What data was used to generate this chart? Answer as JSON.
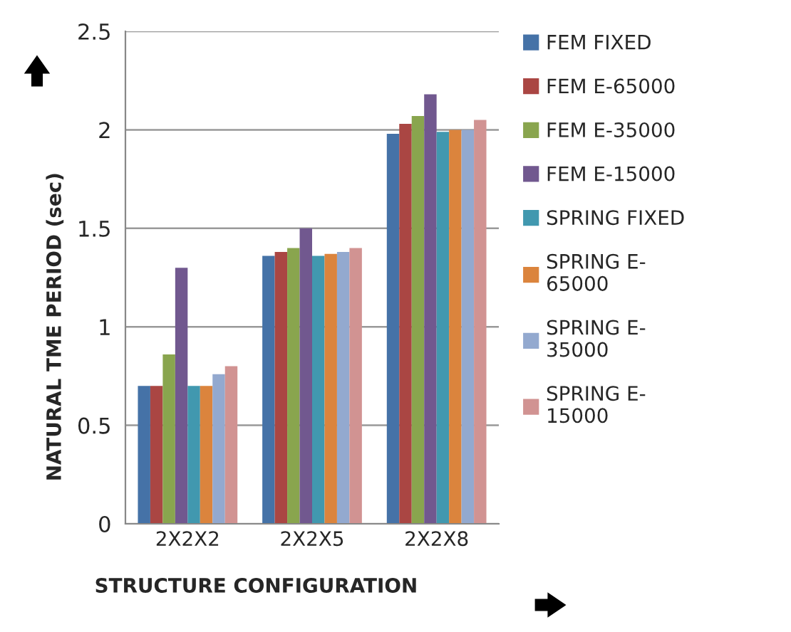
{
  "chart_data": {
    "type": "bar",
    "xlabel": "STRUCTURE CONFIGURATION",
    "ylabel": "NATURAL TME PERIOD (sec)",
    "categories": [
      "2X2X2",
      "2X2X5",
      "2X2X8"
    ],
    "series": [
      {
        "name": "FEM FIXED",
        "color": "#4572a7",
        "values": [
          0.7,
          1.36,
          1.98
        ]
      },
      {
        "name": "FEM E-65000",
        "color": "#aa4643",
        "values": [
          0.7,
          1.38,
          2.03
        ]
      },
      {
        "name": "FEM E-35000",
        "color": "#89a54e",
        "values": [
          0.86,
          1.4,
          2.07
        ]
      },
      {
        "name": "FEM E-15000",
        "color": "#71588f",
        "values": [
          1.3,
          1.5,
          2.18
        ]
      },
      {
        "name": "SPRING FIXED",
        "color": "#4198af",
        "values": [
          0.7,
          1.36,
          1.99
        ]
      },
      {
        "name": "SPRING E-\n65000",
        "color": "#db843d",
        "values": [
          0.7,
          1.37,
          2.0
        ]
      },
      {
        "name": "SPRING E-\n35000",
        "color": "#93a9cf",
        "values": [
          0.76,
          1.38,
          2.0
        ]
      },
      {
        "name": "SPRING E-\n15000",
        "color": "#d19392",
        "values": [
          0.8,
          1.4,
          2.05
        ]
      }
    ],
    "ylim": [
      0,
      2.5
    ],
    "yticks": [
      0,
      0.5,
      1,
      1.5,
      2,
      2.5
    ],
    "grid": "y",
    "legend": "right"
  }
}
